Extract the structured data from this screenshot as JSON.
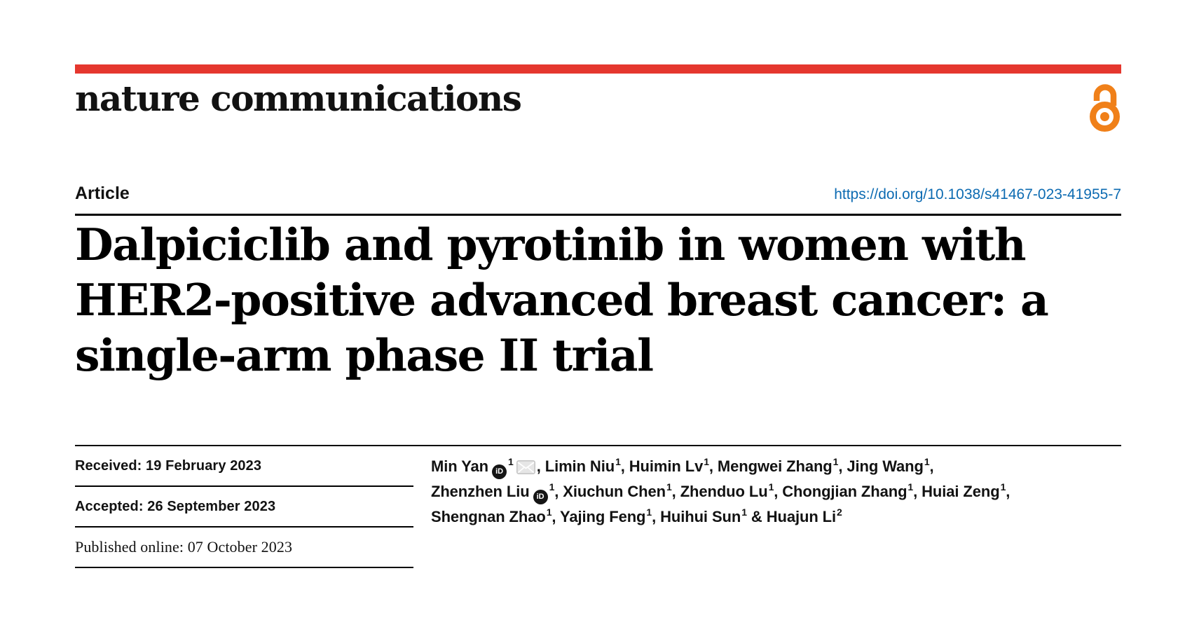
{
  "masthead": {
    "journal": "nature communications",
    "open_access_icon": "open-access-padlock"
  },
  "header": {
    "article_type": "Article",
    "doi": "https://doi.org/10.1038/s41467-023-41955-7"
  },
  "title": {
    "line1": "Dalpiciclib and pyrotinib in women with",
    "line2": "HER2-positive advanced breast cancer: a",
    "line3": "single-arm phase II trial"
  },
  "dates": {
    "rows": [
      {
        "text": "Received: 19 February 2023"
      },
      {
        "text": "Accepted: 26 September 2023"
      },
      {
        "text": "Published online: 07 October 2023"
      }
    ]
  },
  "authors": {
    "lines": [
      [
        {
          "type": "text",
          "value": "Min Yan"
        },
        {
          "type": "orcid",
          "value": "iD"
        },
        {
          "type": "sup",
          "value": "1"
        },
        {
          "type": "mail",
          "value": "envelope"
        },
        {
          "type": "text",
          "value": ", Limin Niu"
        },
        {
          "type": "sup",
          "value": "1"
        },
        {
          "type": "text",
          "value": ", Huimin Lv"
        },
        {
          "type": "sup",
          "value": "1"
        },
        {
          "type": "text",
          "value": ", Mengwei Zhang"
        },
        {
          "type": "sup",
          "value": "1"
        },
        {
          "type": "text",
          "value": ", Jing Wang"
        },
        {
          "type": "sup",
          "value": "1"
        },
        {
          "type": "text",
          "value": ","
        }
      ],
      [
        {
          "type": "text",
          "value": "Zhenzhen Liu"
        },
        {
          "type": "orcid",
          "value": "iD"
        },
        {
          "type": "sup",
          "value": "1"
        },
        {
          "type": "text",
          "value": ", Xiuchun Chen"
        },
        {
          "type": "sup",
          "value": "1"
        },
        {
          "type": "text",
          "value": ", Zhenduo Lu"
        },
        {
          "type": "sup",
          "value": "1"
        },
        {
          "type": "text",
          "value": ", Chongjian Zhang"
        },
        {
          "type": "sup",
          "value": "1"
        },
        {
          "type": "text",
          "value": ", Huiai Zeng"
        },
        {
          "type": "sup",
          "value": "1"
        },
        {
          "type": "text",
          "value": ","
        }
      ],
      [
        {
          "type": "text",
          "value": "Shengnan Zhao"
        },
        {
          "type": "sup",
          "value": "1"
        },
        {
          "type": "text",
          "value": ", Yajing Feng"
        },
        {
          "type": "sup",
          "value": "1"
        },
        {
          "type": "text",
          "value": ", Huihui Sun"
        },
        {
          "type": "sup",
          "value": "1"
        },
        {
          "type": "text",
          "value": " & Huajun Li"
        },
        {
          "type": "sup",
          "value": "2"
        }
      ]
    ]
  },
  "colors": {
    "brand_red": "#e5372e",
    "open_access_orange": "#f08019",
    "link_blue": "#0d6bb2",
    "text_black": "#121212"
  }
}
